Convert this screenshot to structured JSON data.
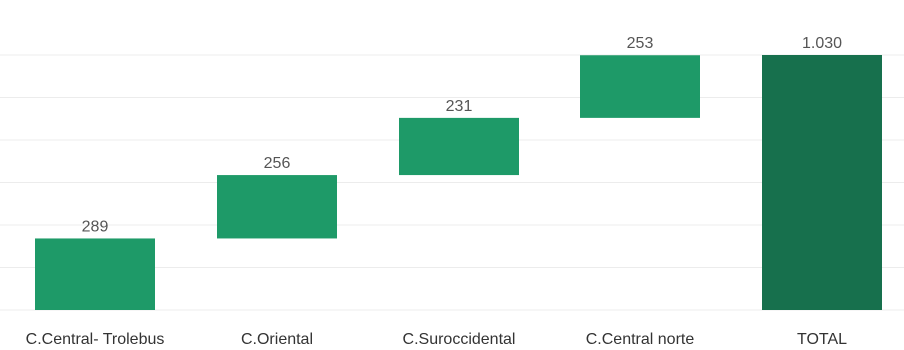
{
  "chart_data": {
    "type": "bar",
    "subtype": "waterfall",
    "title": "",
    "xlabel": "",
    "ylabel": "",
    "categories": [
      "C.Central- Trolebus",
      "C.Oriental",
      "C.Suroccidental",
      "C.Central norte",
      "TOTAL"
    ],
    "values": [
      289,
      256,
      231,
      253,
      1030
    ],
    "value_labels": [
      "289",
      "256",
      "231",
      "253",
      "1.030"
    ],
    "ylim": [
      0,
      1030
    ],
    "grid": true,
    "legend": "none",
    "colors": {
      "step": "#1e9a68",
      "total": "#17704d"
    }
  }
}
